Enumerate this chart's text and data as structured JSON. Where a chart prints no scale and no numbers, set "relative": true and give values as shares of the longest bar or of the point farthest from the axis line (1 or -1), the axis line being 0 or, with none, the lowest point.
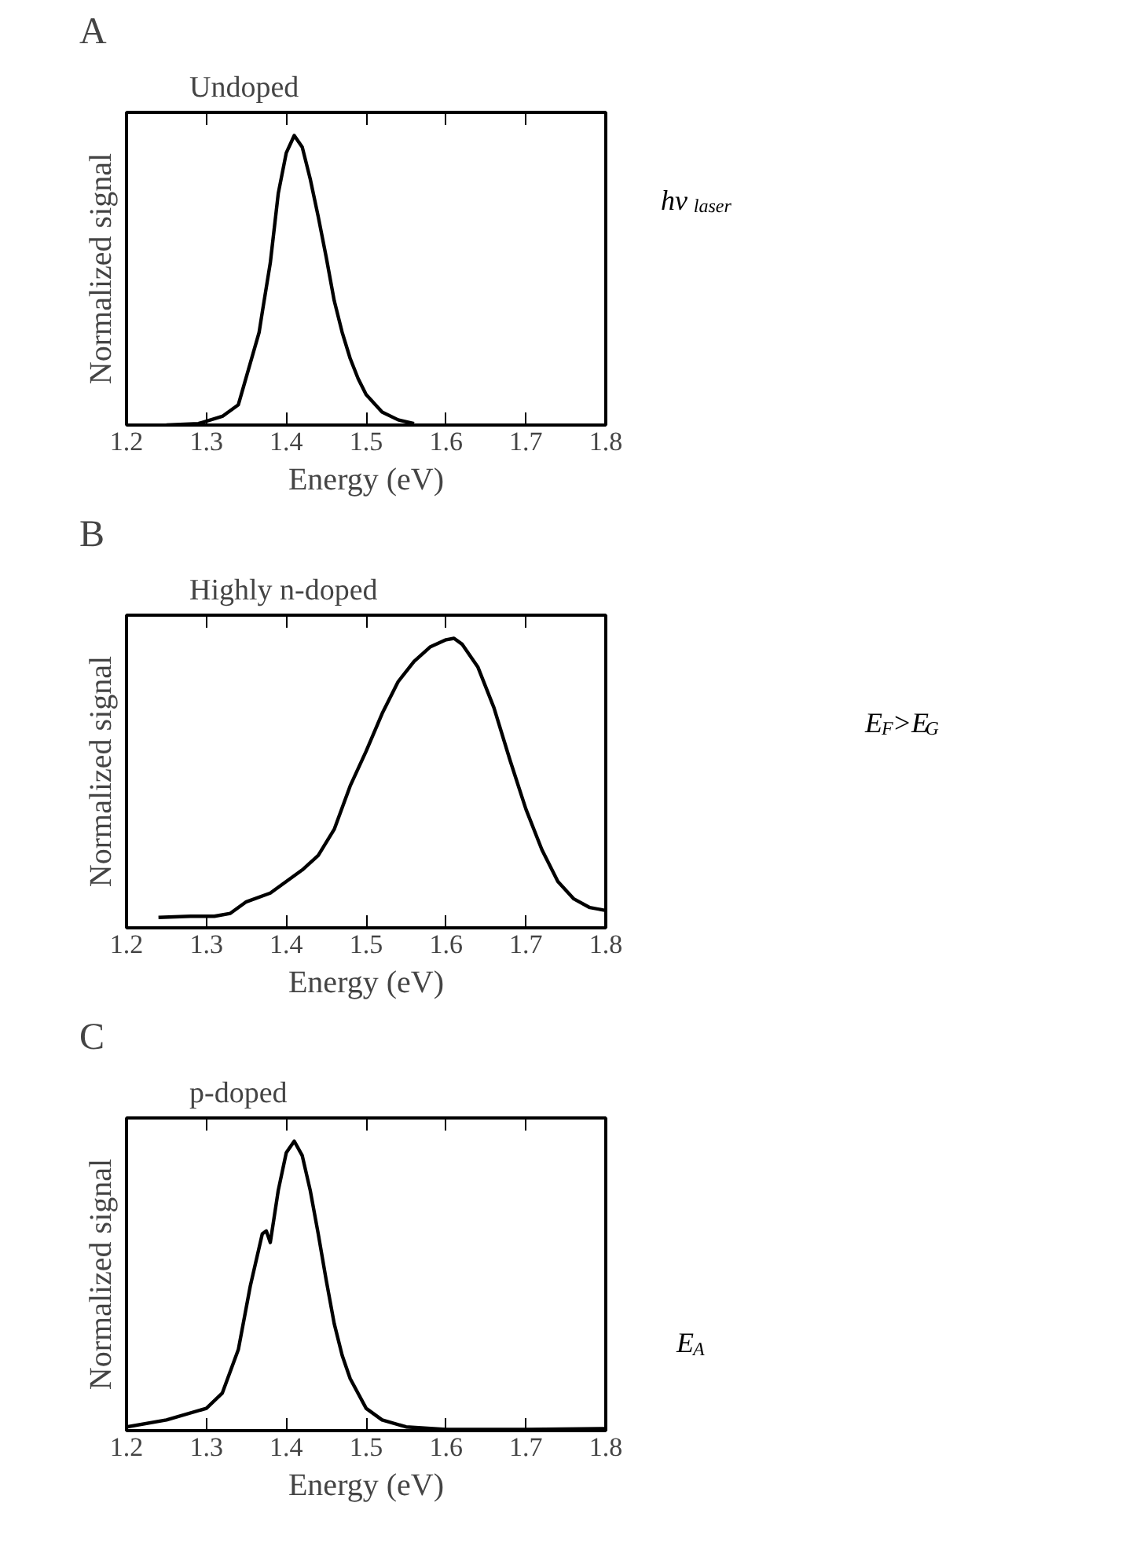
{
  "chart_data": [
    {
      "type": "line",
      "title": "A",
      "subtitle": "Undoped",
      "xlabel": "Energy (eV)",
      "ylabel": "Normalized signal",
      "relative": true,
      "xlim": [
        1.2,
        1.8
      ],
      "xticks": [
        1.2,
        1.3,
        1.4,
        1.5,
        1.6,
        1.7,
        1.8
      ],
      "grid": false,
      "annotations": [
        "hν$_{laser}$"
      ],
      "x": [
        1.25,
        1.29,
        1.32,
        1.34,
        1.366,
        1.37,
        1.38,
        1.39,
        1.4,
        1.41,
        1.42,
        1.43,
        1.44,
        1.45,
        1.46,
        1.47,
        1.48,
        1.49,
        1.5,
        1.52,
        1.54,
        1.56
      ],
      "series": [
        {
          "color": "#000000",
          "values": [
            0,
            0.005,
            0.03,
            0.07,
            0.32,
            0.39,
            0.56,
            0.8,
            0.94,
            1.0,
            0.96,
            0.85,
            0.72,
            0.58,
            0.43,
            0.32,
            0.23,
            0.16,
            0.105,
            0.045,
            0.018,
            0.005
          ]
        }
      ]
    },
    {
      "type": "line",
      "title": "B",
      "subtitle": "Highly n-doped",
      "xlabel": "Energy (eV)",
      "ylabel": "Normalized signal",
      "relative": true,
      "xlim": [
        1.2,
        1.8
      ],
      "xticks": [
        1.2,
        1.3,
        1.4,
        1.5,
        1.6,
        1.7,
        1.8
      ],
      "grid": false,
      "annotations": [
        "E$_{F}$>E$_{G}$"
      ],
      "x": [
        1.24,
        1.28,
        1.31,
        1.33,
        1.35,
        1.38,
        1.4,
        1.42,
        1.44,
        1.46,
        1.48,
        1.5,
        1.52,
        1.54,
        1.56,
        1.58,
        1.6,
        1.61,
        1.62,
        1.64,
        1.66,
        1.68,
        1.7,
        1.72,
        1.74,
        1.76,
        1.78,
        1.8
      ],
      "series": [
        {
          "color": "#000000",
          "values": [
            0.036,
            0.04,
            0.04,
            0.05,
            0.09,
            0.12,
            0.16,
            0.2,
            0.25,
            0.34,
            0.49,
            0.61,
            0.74,
            0.85,
            0.92,
            0.97,
            0.995,
            1.0,
            0.98,
            0.9,
            0.76,
            0.58,
            0.41,
            0.27,
            0.16,
            0.1,
            0.07,
            0.06
          ]
        }
      ]
    },
    {
      "type": "line",
      "title": "C",
      "subtitle": "p-doped",
      "xlabel": "Energy (eV)",
      "ylabel": "Normalized signal",
      "relative": true,
      "xlim": [
        1.2,
        1.8
      ],
      "xticks": [
        1.2,
        1.3,
        1.4,
        1.5,
        1.6,
        1.7,
        1.8
      ],
      "grid": false,
      "annotations": [
        "E$_{A}$"
      ],
      "x": [
        1.2,
        1.25,
        1.3,
        1.32,
        1.34,
        1.355,
        1.37,
        1.375,
        1.38,
        1.39,
        1.4,
        1.41,
        1.42,
        1.43,
        1.44,
        1.45,
        1.46,
        1.47,
        1.48,
        1.5,
        1.52,
        1.55,
        1.6,
        1.7,
        1.8
      ],
      "series": [
        {
          "color": "#000000",
          "values": [
            0.013,
            0.037,
            0.077,
            0.13,
            0.28,
            0.5,
            0.68,
            0.69,
            0.65,
            0.83,
            0.96,
            1.0,
            0.95,
            0.83,
            0.68,
            0.52,
            0.37,
            0.26,
            0.18,
            0.077,
            0.037,
            0.013,
            0.004,
            0.004,
            0.007
          ]
        }
      ]
    }
  ]
}
